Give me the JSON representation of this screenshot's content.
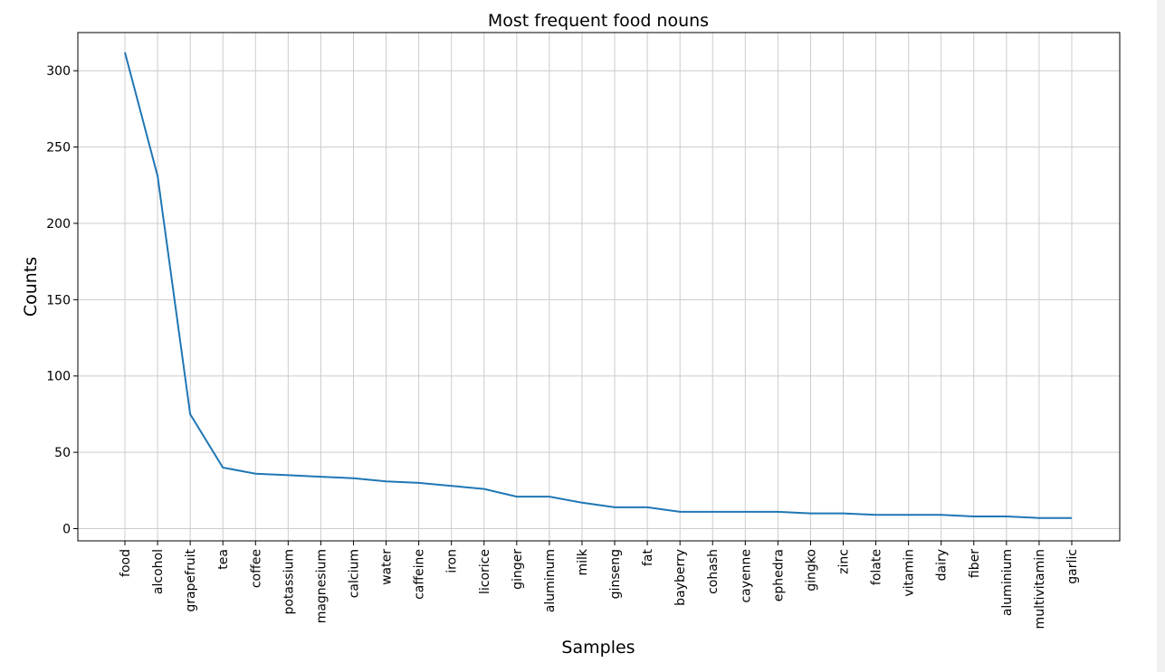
{
  "chart_data": {
    "type": "line",
    "title": "Most frequent food nouns",
    "xlabel": "Samples",
    "ylabel": "Counts",
    "ylim": [
      -8,
      325
    ],
    "yticks": [
      0,
      50,
      100,
      150,
      200,
      250,
      300
    ],
    "grid": true,
    "line_color": "#1f77b4",
    "categories": [
      "food",
      "alcohol",
      "grapefruit",
      "tea",
      "coffee",
      "potassium",
      "magnesium",
      "calcium",
      "water",
      "caffeine",
      "iron",
      "licorice",
      "ginger",
      "aluminum",
      "milk",
      "ginseng",
      "fat",
      "bayberry",
      "cohash",
      "cayenne",
      "ephedra",
      "gingko",
      "zinc",
      "folate",
      "vitamin",
      "dairy",
      "fiber",
      "aluminium",
      "multivitamin",
      "garlic"
    ],
    "values": [
      312,
      231,
      75,
      40,
      36,
      35,
      34,
      33,
      31,
      30,
      28,
      26,
      21,
      21,
      17,
      14,
      14,
      11,
      11,
      11,
      11,
      10,
      10,
      9,
      9,
      9,
      8,
      8,
      7,
      7
    ]
  }
}
